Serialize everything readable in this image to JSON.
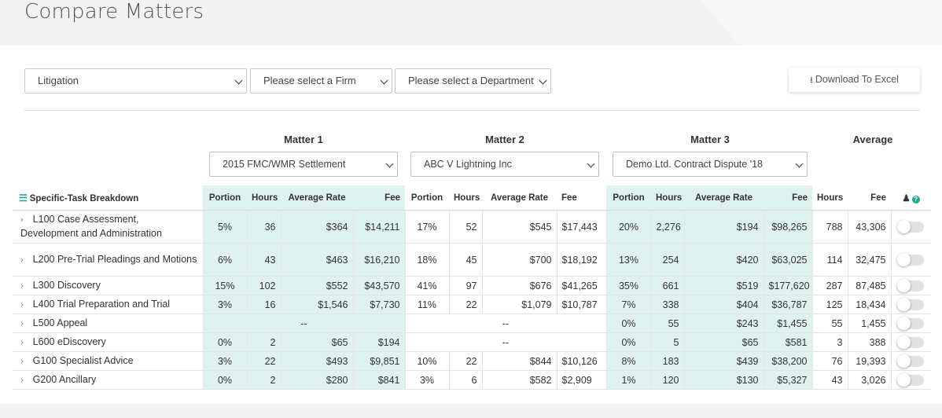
{
  "page": {
    "title": "Compare Matters"
  },
  "filters": {
    "practice_area": "Litigation",
    "firm": "Please select a Firm",
    "department": "Please select a Department",
    "download_label": "Download To Excel"
  },
  "matters": [
    {
      "heading": "Matter 1",
      "selected": "2015 FMC/WMR Settlement"
    },
    {
      "heading": "Matter 2",
      "selected": "ABC V Lightning Inc"
    },
    {
      "heading": "Matter 3",
      "selected": "Demo Ltd. Contract Dispute '18"
    }
  ],
  "average_heading": "Average",
  "table": {
    "breakdown_label": "Specific-Task Breakdown",
    "columns": {
      "portion": "Portion",
      "hours": "Hours",
      "avg_rate": "Average Rate",
      "fee": "Fee"
    },
    "rows": [
      {
        "task": "L100 Case Assessment, Development and Administration",
        "m1": {
          "portion": "5%",
          "hours": "36",
          "rate": "$364",
          "fee": "$14,211"
        },
        "m2": {
          "portion": "17%",
          "hours": "52",
          "rate": "$545",
          "fee": "$17,443"
        },
        "m3": {
          "portion": "20%",
          "hours": "2,276",
          "rate": "$194",
          "fee": "$98,265"
        },
        "avg": {
          "hours": "788",
          "fee": "43,306"
        }
      },
      {
        "task": "L200 Pre-Trial Pleadings and Motions",
        "m1": {
          "portion": "6%",
          "hours": "43",
          "rate": "$463",
          "fee": "$16,210"
        },
        "m2": {
          "portion": "18%",
          "hours": "45",
          "rate": "$700",
          "fee": "$18,192"
        },
        "m3": {
          "portion": "13%",
          "hours": "254",
          "rate": "$420",
          "fee": "$63,025"
        },
        "avg": {
          "hours": "114",
          "fee": "32,475"
        }
      },
      {
        "task": "L300 Discovery",
        "m1": {
          "portion": "15%",
          "hours": "102",
          "rate": "$552",
          "fee": "$43,570"
        },
        "m2": {
          "portion": "41%",
          "hours": "97",
          "rate": "$676",
          "fee": "$41,265"
        },
        "m3": {
          "portion": "35%",
          "hours": "661",
          "rate": "$519",
          "fee": "$177,620"
        },
        "avg": {
          "hours": "287",
          "fee": "87,485"
        }
      },
      {
        "task": "L400 Trial Preparation and Trial",
        "m1": {
          "portion": "3%",
          "hours": "16",
          "rate": "$1,546",
          "fee": "$7,730"
        },
        "m2": {
          "portion": "11%",
          "hours": "22",
          "rate": "$1,079",
          "fee": "$10,787"
        },
        "m3": {
          "portion": "7%",
          "hours": "338",
          "rate": "$404",
          "fee": "$36,787"
        },
        "avg": {
          "hours": "125",
          "fee": "18,434"
        }
      },
      {
        "task": "L500 Appeal",
        "m1_empty": "--",
        "m2_empty": "--",
        "m3": {
          "portion": "0%",
          "hours": "55",
          "rate": "$243",
          "fee": "$1,455"
        },
        "avg": {
          "hours": "55",
          "fee": "1,455"
        }
      },
      {
        "task": "L600 eDiscovery",
        "m1": {
          "portion": "0%",
          "hours": "2",
          "rate": "$65",
          "fee": "$194"
        },
        "m2_empty": "--",
        "m3": {
          "portion": "0%",
          "hours": "5",
          "rate": "$65",
          "fee": "$581"
        },
        "avg": {
          "hours": "3",
          "fee": "388"
        }
      },
      {
        "task": "G100 Specialist Advice",
        "m1": {
          "portion": "3%",
          "hours": "22",
          "rate": "$493",
          "fee": "$9,851"
        },
        "m2": {
          "portion": "10%",
          "hours": "22",
          "rate": "$844",
          "fee": "$10,126"
        },
        "m3": {
          "portion": "8%",
          "hours": "183",
          "rate": "$439",
          "fee": "$38,200"
        },
        "avg": {
          "hours": "76",
          "fee": "19,393"
        }
      },
      {
        "task": "G200 Ancillary",
        "m1": {
          "portion": "0%",
          "hours": "2",
          "rate": "$280",
          "fee": "$841"
        },
        "m2": {
          "portion": "3%",
          "hours": "6",
          "rate": "$582",
          "fee": "$2,909"
        },
        "m3": {
          "portion": "1%",
          "hours": "120",
          "rate": "$130",
          "fee": "$5,327"
        },
        "avg": {
          "hours": "43",
          "fee": "3,026"
        }
      }
    ]
  },
  "colors": {
    "accent": "#21a88f",
    "teal_band": "#dff2ef"
  },
  "icons": {
    "breakdown": "list-icon",
    "download": "download-icon",
    "user": "user-icon",
    "help": "help-icon"
  }
}
